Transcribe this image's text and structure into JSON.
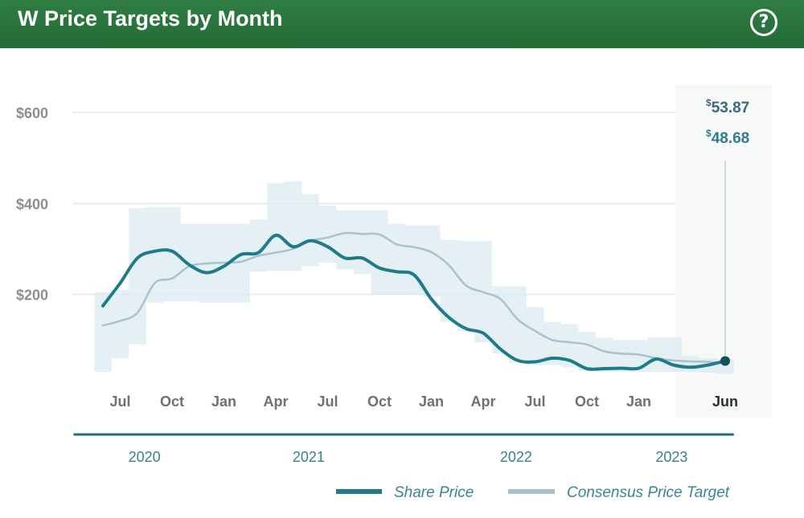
{
  "header": {
    "title": "W Price Targets by Month",
    "help_icon": "question-circle-icon",
    "bg_color": "#2a7540"
  },
  "tooltip": {
    "share_price": "53.87",
    "consensus_target": "48.68",
    "currency_symbol": "$",
    "share_color": "#3a6a80",
    "target_color": "#2f7d8e"
  },
  "legend": {
    "position": "bottom-right",
    "items": [
      {
        "label": "Share Price",
        "color": "#1e7c8a"
      },
      {
        "label": "Consensus Price Target",
        "color": "#a9c2cc"
      }
    ]
  },
  "chart_data": {
    "type": "line",
    "title": "W Price Targets by Month",
    "ylim": [
      0,
      600
    ],
    "yticks": [
      200,
      400,
      600
    ],
    "ytick_labels": [
      "$200",
      "$400",
      "$600"
    ],
    "grid": true,
    "x_months": [
      "2020-06",
      "2020-07",
      "2020-08",
      "2020-09",
      "2020-10",
      "2020-11",
      "2020-12",
      "2021-01",
      "2021-02",
      "2021-03",
      "2021-04",
      "2021-05",
      "2021-06",
      "2021-07",
      "2021-08",
      "2021-09",
      "2021-10",
      "2021-11",
      "2021-12",
      "2022-01",
      "2022-02",
      "2022-03",
      "2022-04",
      "2022-05",
      "2022-06",
      "2022-07",
      "2022-08",
      "2022-09",
      "2022-10",
      "2022-11",
      "2022-12",
      "2023-01",
      "2023-02",
      "2023-03",
      "2023-04",
      "2023-05",
      "2023-06"
    ],
    "xtick_labels": [
      {
        "month": "2020-07",
        "label": "Jul"
      },
      {
        "month": "2020-10",
        "label": "Oct"
      },
      {
        "month": "2021-01",
        "label": "Jan"
      },
      {
        "month": "2021-04",
        "label": "Apr"
      },
      {
        "month": "2021-07",
        "label": "Jul"
      },
      {
        "month": "2021-10",
        "label": "Oct"
      },
      {
        "month": "2022-01",
        "label": "Jan"
      },
      {
        "month": "2022-04",
        "label": "Apr"
      },
      {
        "month": "2022-07",
        "label": "Jul"
      },
      {
        "month": "2022-10",
        "label": "Oct"
      },
      {
        "month": "2023-01",
        "label": "Jan"
      },
      {
        "month": "2023-06",
        "label": "Jun"
      }
    ],
    "year_groups": [
      {
        "label": "2020",
        "start": "2020-06",
        "end": "2020-12"
      },
      {
        "label": "2021",
        "start": "2021-01",
        "end": "2021-12"
      },
      {
        "label": "2022",
        "start": "2022-01",
        "end": "2022-12"
      },
      {
        "label": "2023",
        "start": "2023-01",
        "end": "2023-06"
      }
    ],
    "series": [
      {
        "name": "Share Price",
        "values": [
          175,
          225,
          280,
          295,
          295,
          265,
          248,
          262,
          288,
          292,
          330,
          305,
          318,
          305,
          280,
          280,
          258,
          250,
          243,
          190,
          150,
          125,
          115,
          80,
          55,
          52,
          60,
          55,
          37,
          37,
          38,
          38,
          58,
          45,
          40,
          45,
          53.87
        ]
      },
      {
        "name": "Consensus Price Target",
        "values": [
          132,
          142,
          160,
          225,
          235,
          262,
          268,
          270,
          272,
          285,
          292,
          300,
          318,
          325,
          335,
          333,
          332,
          310,
          304,
          293,
          265,
          220,
          205,
          190,
          145,
          120,
          100,
          95,
          90,
          75,
          70,
          68,
          60,
          55,
          53,
          52,
          48.68
        ]
      }
    ],
    "band": {
      "high": [
        205,
        210,
        390,
        392,
        392,
        355,
        355,
        355,
        355,
        365,
        445,
        448,
        420,
        395,
        385,
        385,
        385,
        355,
        352,
        352,
        320,
        318,
        318,
        218,
        218,
        172,
        140,
        135,
        118,
        105,
        100,
        100,
        106,
        106,
        65,
        60,
        58
      ],
      "low": [
        30,
        60,
        90,
        182,
        185,
        185,
        182,
        182,
        182,
        250,
        252,
        252,
        262,
        270,
        255,
        245,
        200,
        200,
        200,
        195,
        140,
        120,
        95,
        70,
        50,
        45,
        45,
        40,
        32,
        30,
        30,
        30,
        30,
        30,
        30,
        28,
        26
      ]
    }
  }
}
